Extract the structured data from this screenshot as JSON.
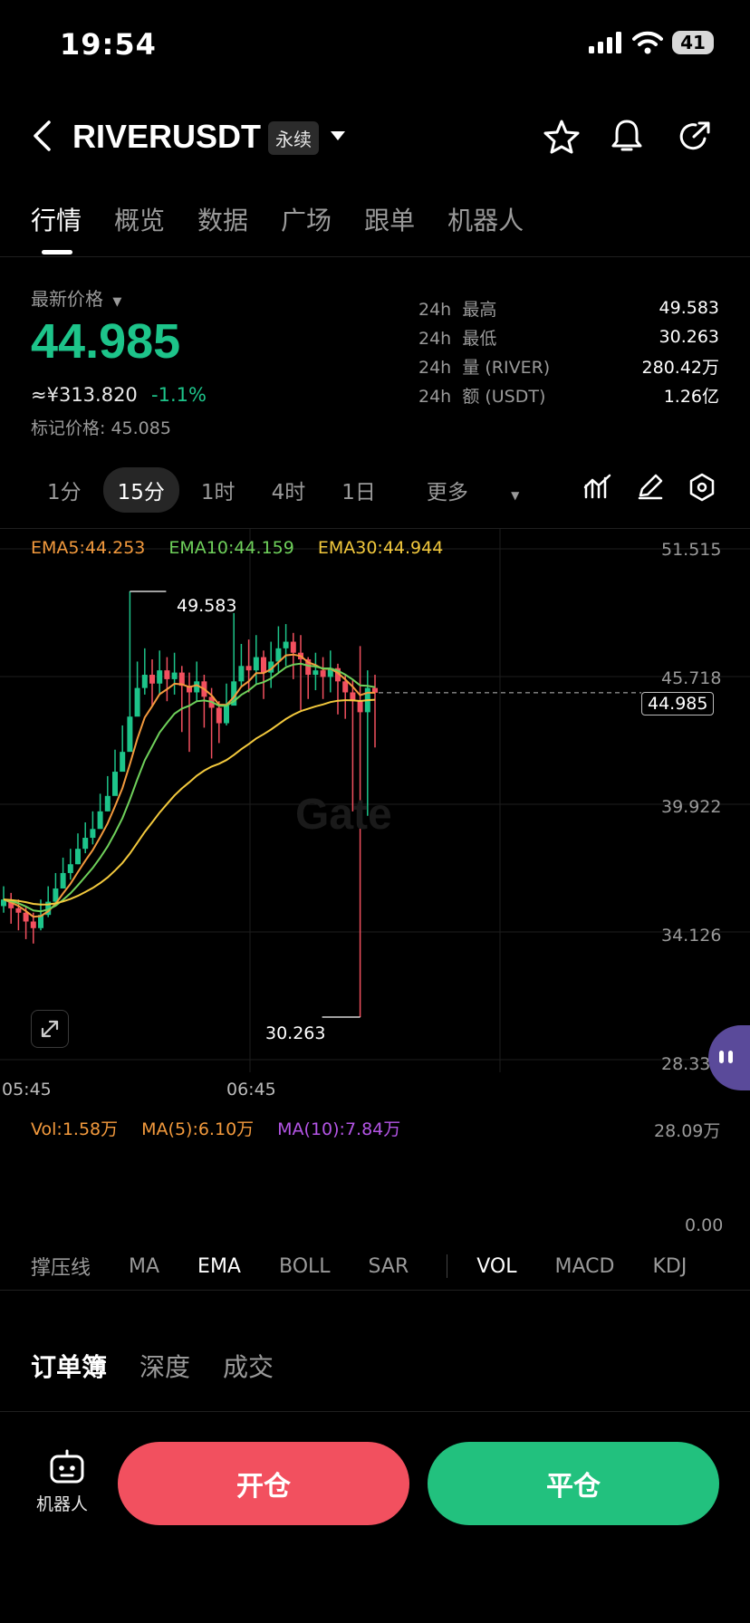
{
  "status": {
    "time": "19:54",
    "battery": "41"
  },
  "header": {
    "title": "RIVERUSDT",
    "tag": "永续"
  },
  "tabs": [
    {
      "label": "行情"
    },
    {
      "label": "概览"
    },
    {
      "label": "数据"
    },
    {
      "label": "广场"
    },
    {
      "label": "跟单"
    },
    {
      "label": "机器人"
    }
  ],
  "price": {
    "label": "最新价格",
    "last": "44.985",
    "cny": "≈¥313.820",
    "change": "-1.1%",
    "mark_label": "标记价格: 45.085"
  },
  "stats": [
    {
      "prefix": "24h",
      "label": "最高",
      "value": "49.583"
    },
    {
      "prefix": "24h",
      "label": "最低",
      "value": "30.263"
    },
    {
      "prefix": "24h",
      "label": "量 (RIVER)",
      "value": "280.42万"
    },
    {
      "prefix": "24h",
      "label": "额 (USDT)",
      "value": "1.26亿"
    }
  ],
  "intervals": [
    "1分",
    "15分",
    "1时",
    "4时",
    "1日",
    "更多"
  ],
  "chart_data": {
    "type": "candlestick",
    "ema_legend": [
      {
        "label": "EMA5:44.253",
        "color": "#f39a3d"
      },
      {
        "label": "EMA10:44.159",
        "color": "#6fd15b"
      },
      {
        "label": "EMA30:44.944",
        "color": "#f3c93d"
      }
    ],
    "y_ticks": [
      "51.515",
      "45.718",
      "39.922",
      "34.126",
      "28.330"
    ],
    "x_ticks": [
      "05:45",
      "06:45"
    ],
    "ylim": [
      28.33,
      51.515
    ],
    "high_label": "49.583",
    "low_label": "30.263",
    "last_price": "44.985",
    "volume": {
      "legend": [
        {
          "label": "Vol:1.58万",
          "color": "#f39a3d"
        },
        {
          "label": "MA(5):6.10万",
          "color": "#f39a3d"
        },
        {
          "label": "MA(10):7.84万",
          "color": "#b455e6"
        }
      ],
      "y_ticks": [
        "28.09万",
        "0.00"
      ]
    },
    "closes": [
      35.6,
      35.2,
      35.0,
      34.6,
      34.3,
      34.9,
      35.5,
      36.1,
      36.8,
      37.2,
      37.9,
      38.4,
      38.8,
      39.6,
      40.3,
      41.4,
      42.3,
      43.9,
      45.2,
      45.8,
      45.4,
      46.0,
      45.6,
      45.9,
      45.3,
      45.0,
      45.5,
      44.8,
      44.3,
      43.6,
      44.4,
      45.5,
      46.2,
      46.0,
      46.6,
      45.9,
      46.4,
      47.0,
      47.3,
      46.8,
      46.5,
      45.8,
      46.0,
      45.7,
      46.1,
      45.5,
      45.0,
      44.6,
      44.1,
      45.2,
      44.985
    ],
    "highs": [
      36.2,
      35.9,
      35.6,
      35.3,
      35.0,
      35.6,
      36.2,
      36.8,
      37.5,
      37.9,
      38.6,
      39.1,
      39.6,
      40.4,
      41.2,
      42.4,
      43.5,
      49.583,
      46.4,
      47.0,
      46.5,
      46.9,
      46.6,
      46.8,
      46.2,
      45.9,
      46.4,
      45.8,
      45.2,
      44.6,
      45.4,
      48.6,
      47.2,
      47.4,
      47.6,
      46.9,
      47.3,
      48.0,
      48.1,
      47.7,
      47.6,
      46.6,
      46.8,
      46.6,
      46.9,
      46.3,
      45.8,
      45.6,
      47.1,
      46.0,
      45.8
    ],
    "lows": [
      35.0,
      34.5,
      34.2,
      33.8,
      33.6,
      34.2,
      34.8,
      35.4,
      36.1,
      36.5,
      37.2,
      37.7,
      38.1,
      38.9,
      39.6,
      40.6,
      41.5,
      42.9,
      44.3,
      44.9,
      44.4,
      44.9,
      44.6,
      44.9,
      43.2,
      42.3,
      44.6,
      43.4,
      42.0,
      42.7,
      43.5,
      44.6,
      45.3,
      45.0,
      45.4,
      44.7,
      45.2,
      45.9,
      46.2,
      45.6,
      44.2,
      44.7,
      45.1,
      44.7,
      45.0,
      44.0,
      43.8,
      39.6,
      30.263,
      39.4,
      42.5
    ]
  },
  "indicator_tabs": {
    "main": [
      "撑压线",
      "MA",
      "EMA",
      "BOLL",
      "SAR"
    ],
    "sub": [
      "VOL",
      "MACD",
      "KDJ"
    ],
    "active_main": "EMA",
    "active_sub": "VOL"
  },
  "book_tabs": [
    "订单簿",
    "深度",
    "成交"
  ],
  "bottom": {
    "robot_label": "机器人",
    "open": "开仓",
    "close": "平仓"
  },
  "watermark": "Gate"
}
